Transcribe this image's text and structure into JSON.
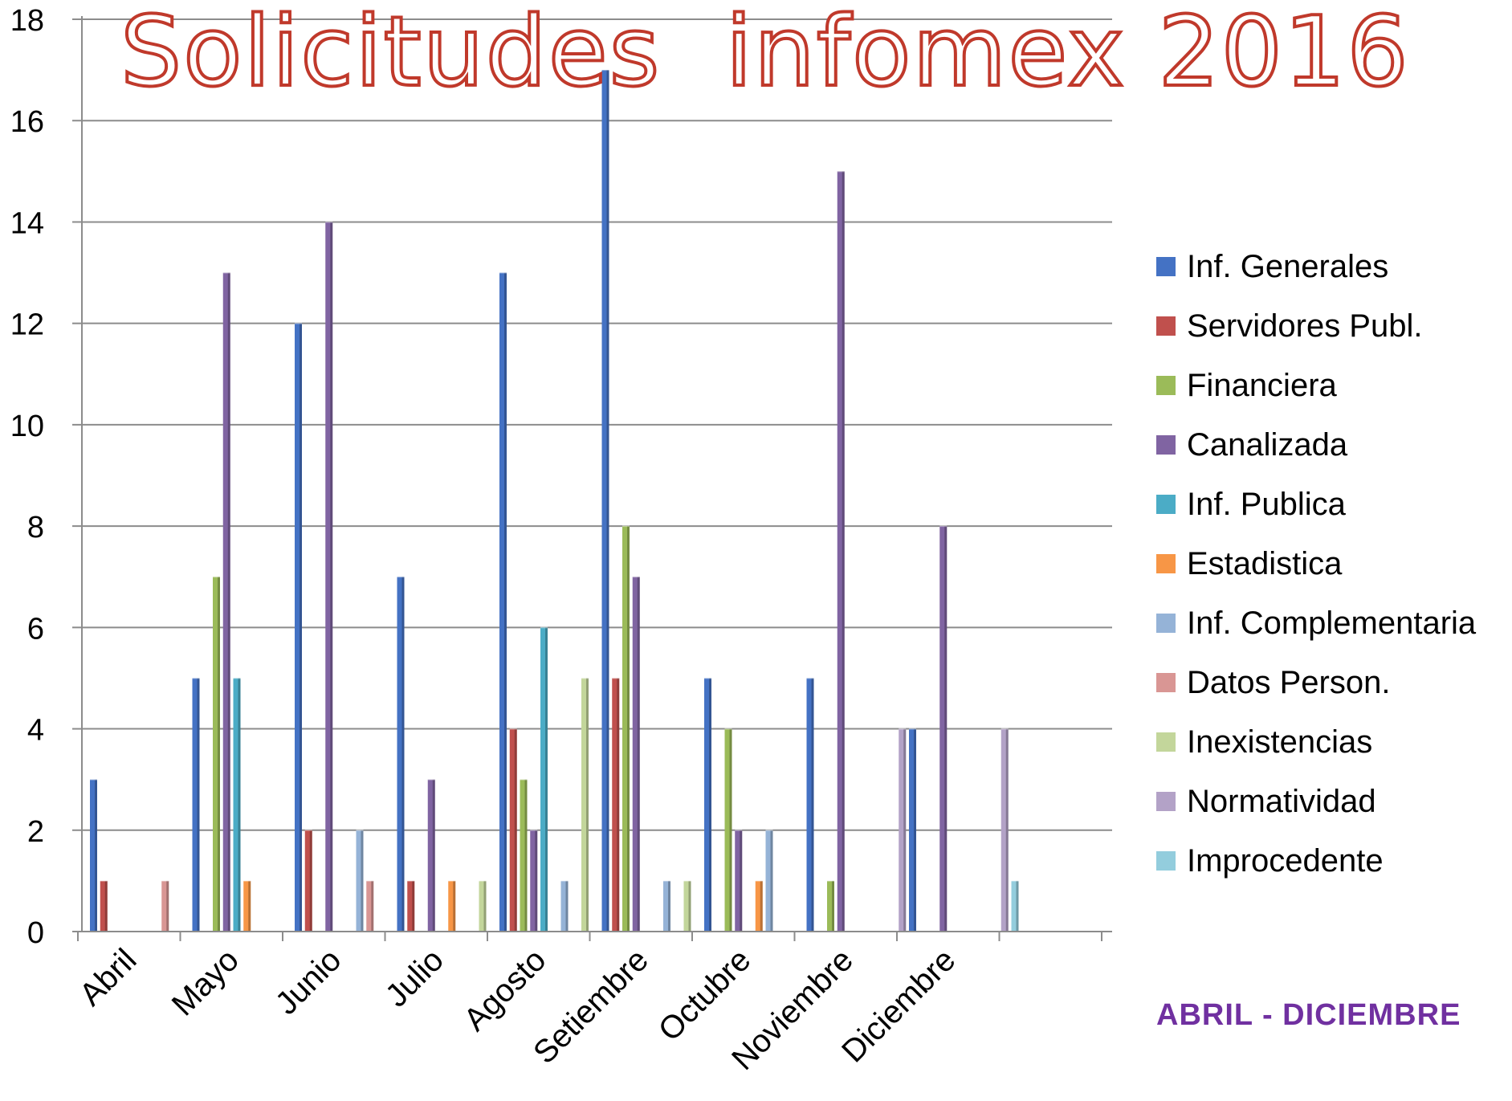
{
  "chart_data": {
    "type": "bar",
    "title": "Solicitudes  infomex 2016",
    "note": "ABRIL - DICIEMBRE",
    "categories": [
      "Abril",
      "Mayo",
      "Junio",
      "Julio",
      "Agosto",
      "Setiembre",
      "Octubre",
      "Noviembre",
      "Diciembre"
    ],
    "ylim": [
      0,
      18
    ],
    "yticks": [
      0,
      2,
      4,
      6,
      8,
      10,
      12,
      14,
      16,
      18
    ],
    "grid": true,
    "legend_position": "right",
    "series": [
      {
        "name": "Inf. Generales",
        "color": "#4472c4",
        "values": [
          3,
          5,
          12,
          7,
          13,
          17,
          5,
          5,
          4
        ]
      },
      {
        "name": "Servidores Publ.",
        "color": "#c0504d",
        "values": [
          1,
          0,
          2,
          1,
          4,
          5,
          0,
          0,
          0
        ]
      },
      {
        "name": "Financiera",
        "color": "#9bbb59",
        "values": [
          0,
          7,
          0,
          0,
          3,
          8,
          4,
          1,
          0
        ]
      },
      {
        "name": "Canalizada",
        "color": "#8064a2",
        "values": [
          0,
          13,
          14,
          3,
          2,
          7,
          2,
          15,
          8
        ]
      },
      {
        "name": "Inf. Publica",
        "color": "#4bacc6",
        "values": [
          0,
          5,
          0,
          0,
          6,
          0,
          0,
          0,
          0
        ]
      },
      {
        "name": "Estadistica",
        "color": "#f79646",
        "values": [
          0,
          1,
          0,
          1,
          0,
          0,
          1,
          0,
          0
        ]
      },
      {
        "name": "Inf. Complementaria",
        "color": "#95b3d7",
        "values": [
          0,
          0,
          2,
          0,
          1,
          1,
          2,
          0,
          0
        ]
      },
      {
        "name": "Datos Person.",
        "color": "#d99694",
        "values": [
          1,
          0,
          1,
          0,
          0,
          0,
          0,
          0,
          0
        ]
      },
      {
        "name": "Inexistencias",
        "color": "#c3d69b",
        "values": [
          0,
          0,
          0,
          1,
          5,
          1,
          0,
          0,
          0
        ]
      },
      {
        "name": "Normatividad",
        "color": "#b3a2c7",
        "values": [
          0,
          0,
          0,
          0,
          0,
          0,
          0,
          4,
          4
        ]
      },
      {
        "name": "Improcedente",
        "color": "#93cddd",
        "values": [
          0,
          0,
          0,
          0,
          0,
          0,
          0,
          1,
          1
        ]
      }
    ]
  }
}
